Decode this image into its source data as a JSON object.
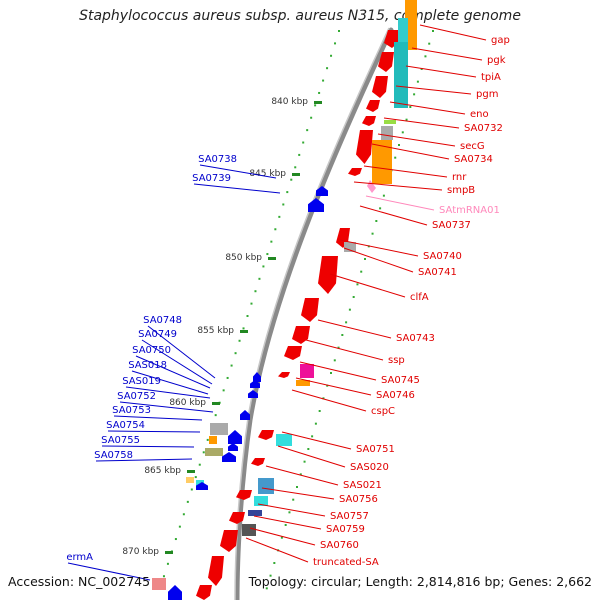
{
  "title": "Staphylococcus aureus subsp. aureus N315, complete genome",
  "footer": {
    "accession": "Accession: NC_002745",
    "topology": "Topology: circular; Length: 2,814,816 bp; Genes: 2,662"
  },
  "colors": {
    "forward_label": "#e00000",
    "reverse_label": "#0000cc",
    "rna_label": "#ff88bb",
    "forward_gene": "#ee0000",
    "reverse_gene": "#0000ee",
    "backbone": "#888888",
    "tick": "#228822",
    "dot": "#33aa33"
  },
  "kbp_ticks": [
    "840 kbp",
    "845 kbp",
    "850 kbp",
    "855 kbp",
    "860 kbp",
    "865 kbp",
    "870 kbp"
  ],
  "right_labels": [
    "gap",
    "pgk",
    "tpiA",
    "pgm",
    "eno",
    "SA0732",
    "secG",
    "SA0734",
    "rnr",
    "smpB",
    "SAtmRNA01",
    "SA0737",
    "SA0740",
    "SA0741",
    "clfA",
    "SA0743",
    "ssp",
    "SA0745",
    "SA0746",
    "cspC",
    "SA0751",
    "SAS020",
    "SAS021",
    "SA0756",
    "SA0757",
    "SA0759",
    "SA0760",
    "truncated-SA"
  ],
  "left_labels": [
    "SA0738",
    "SA0739",
    "SA0748",
    "SA0749",
    "SA0750",
    "SAS018",
    "SAS019",
    "SA0752",
    "SA0753",
    "SA0754",
    "SA0755",
    "SA0758",
    "ermA"
  ]
}
